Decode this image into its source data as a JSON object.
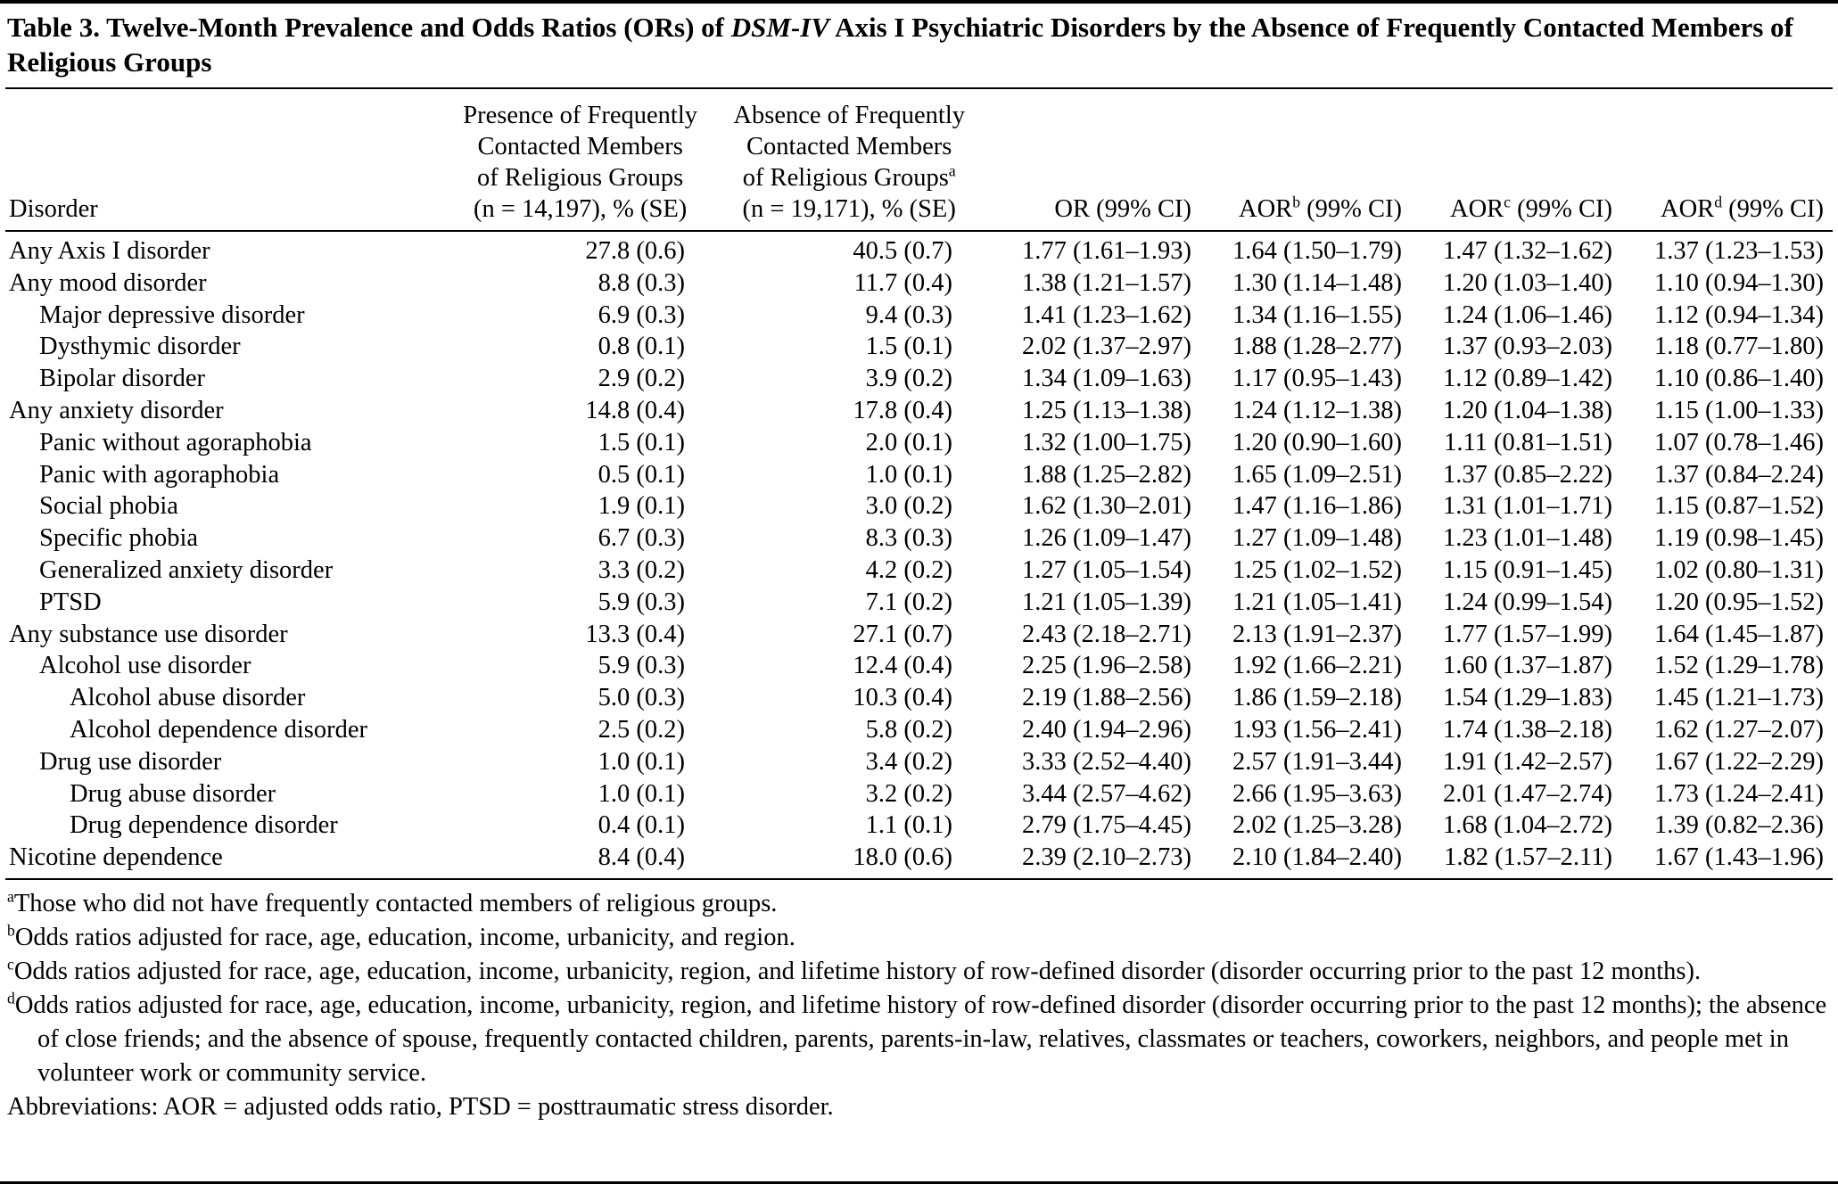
{
  "title": {
    "part1": "Table 3. Twelve-Month Prevalence and Odds Ratios (ORs) of ",
    "italic": "DSM-IV",
    "part2": " Axis I Psychiatric Disorders by the Absence of Frequently Contacted Members of Religious Groups"
  },
  "header": {
    "disorder": "Disorder",
    "presence_lines": [
      "Presence of Frequently",
      "Contacted Members",
      "of Religious Groups",
      "(n = 14,197), % (SE)"
    ],
    "absence_lines": [
      "Absence of Frequently",
      "Contacted Members",
      "of Religious Groups",
      "(n = 19,171), % (SE)"
    ],
    "absence_sup": "a",
    "or": "OR (99% CI)",
    "aor_label": "AOR",
    "aor_sup_b": "b",
    "aor_sup_c": "c",
    "aor_sup_d": "d",
    "ci_suffix": " (99% CI)"
  },
  "table": {
    "rows": [
      {
        "indent": 0,
        "disorder": "Any Axis I disorder",
        "presence": "27.8 (0.6)",
        "absence": "40.5 (0.7)",
        "or": "1.77 (1.61–1.93)",
        "aor_b": "1.64 (1.50–1.79)",
        "aor_c": "1.47 (1.32–1.62)",
        "aor_d": "1.37 (1.23–1.53)"
      },
      {
        "indent": 0,
        "disorder": "Any mood disorder",
        "presence": "8.8 (0.3)",
        "absence": "11.7 (0.4)",
        "or": "1.38 (1.21–1.57)",
        "aor_b": "1.30 (1.14–1.48)",
        "aor_c": "1.20 (1.03–1.40)",
        "aor_d": "1.10 (0.94–1.30)"
      },
      {
        "indent": 1,
        "disorder": "Major depressive disorder",
        "presence": "6.9 (0.3)",
        "absence": "9.4 (0.3)",
        "or": "1.41 (1.23–1.62)",
        "aor_b": "1.34 (1.16–1.55)",
        "aor_c": "1.24 (1.06–1.46)",
        "aor_d": "1.12 (0.94–1.34)"
      },
      {
        "indent": 1,
        "disorder": "Dysthymic disorder",
        "presence": "0.8 (0.1)",
        "absence": "1.5 (0.1)",
        "or": "2.02 (1.37–2.97)",
        "aor_b": "1.88 (1.28–2.77)",
        "aor_c": "1.37 (0.93–2.03)",
        "aor_d": "1.18 (0.77–1.80)"
      },
      {
        "indent": 1,
        "disorder": "Bipolar disorder",
        "presence": "2.9 (0.2)",
        "absence": "3.9 (0.2)",
        "or": "1.34 (1.09–1.63)",
        "aor_b": "1.17 (0.95–1.43)",
        "aor_c": "1.12 (0.89–1.42)",
        "aor_d": "1.10 (0.86–1.40)"
      },
      {
        "indent": 0,
        "disorder": "Any anxiety disorder",
        "presence": "14.8 (0.4)",
        "absence": "17.8 (0.4)",
        "or": "1.25 (1.13–1.38)",
        "aor_b": "1.24 (1.12–1.38)",
        "aor_c": "1.20 (1.04–1.38)",
        "aor_d": "1.15 (1.00–1.33)"
      },
      {
        "indent": 1,
        "disorder": "Panic without agoraphobia",
        "presence": "1.5 (0.1)",
        "absence": "2.0 (0.1)",
        "or": "1.32 (1.00–1.75)",
        "aor_b": "1.20 (0.90–1.60)",
        "aor_c": "1.11 (0.81–1.51)",
        "aor_d": "1.07 (0.78–1.46)"
      },
      {
        "indent": 1,
        "disorder": "Panic with agoraphobia",
        "presence": "0.5 (0.1)",
        "absence": "1.0 (0.1)",
        "or": "1.88 (1.25–2.82)",
        "aor_b": "1.65 (1.09–2.51)",
        "aor_c": "1.37 (0.85–2.22)",
        "aor_d": "1.37 (0.84–2.24)"
      },
      {
        "indent": 1,
        "disorder": "Social phobia",
        "presence": "1.9 (0.1)",
        "absence": "3.0 (0.2)",
        "or": "1.62 (1.30–2.01)",
        "aor_b": "1.47 (1.16–1.86)",
        "aor_c": "1.31 (1.01–1.71)",
        "aor_d": "1.15 (0.87–1.52)"
      },
      {
        "indent": 1,
        "disorder": "Specific phobia",
        "presence": "6.7 (0.3)",
        "absence": "8.3 (0.3)",
        "or": "1.26 (1.09–1.47)",
        "aor_b": "1.27 (1.09–1.48)",
        "aor_c": "1.23 (1.01–1.48)",
        "aor_d": "1.19 (0.98–1.45)"
      },
      {
        "indent": 1,
        "disorder": "Generalized anxiety disorder",
        "presence": "3.3 (0.2)",
        "absence": "4.2 (0.2)",
        "or": "1.27 (1.05–1.54)",
        "aor_b": "1.25 (1.02–1.52)",
        "aor_c": "1.15 (0.91–1.45)",
        "aor_d": "1.02 (0.80–1.31)"
      },
      {
        "indent": 1,
        "disorder": "PTSD",
        "presence": "5.9 (0.3)",
        "absence": "7.1 (0.2)",
        "or": "1.21 (1.05–1.39)",
        "aor_b": "1.21 (1.05–1.41)",
        "aor_c": "1.24 (0.99–1.54)",
        "aor_d": "1.20 (0.95–1.52)"
      },
      {
        "indent": 0,
        "disorder": "Any substance use disorder",
        "presence": "13.3 (0.4)",
        "absence": "27.1 (0.7)",
        "or": "2.43 (2.18–2.71)",
        "aor_b": "2.13 (1.91–2.37)",
        "aor_c": "1.77 (1.57–1.99)",
        "aor_d": "1.64 (1.45–1.87)"
      },
      {
        "indent": 1,
        "disorder": "Alcohol use disorder",
        "presence": "5.9 (0.3)",
        "absence": "12.4 (0.4)",
        "or": "2.25 (1.96–2.58)",
        "aor_b": "1.92 (1.66–2.21)",
        "aor_c": "1.60 (1.37–1.87)",
        "aor_d": "1.52 (1.29–1.78)"
      },
      {
        "indent": 2,
        "disorder": "Alcohol abuse disorder",
        "presence": "5.0 (0.3)",
        "absence": "10.3 (0.4)",
        "or": "2.19 (1.88–2.56)",
        "aor_b": "1.86 (1.59–2.18)",
        "aor_c": "1.54 (1.29–1.83)",
        "aor_d": "1.45 (1.21–1.73)"
      },
      {
        "indent": 2,
        "disorder": "Alcohol dependence disorder",
        "presence": "2.5 (0.2)",
        "absence": "5.8 (0.2)",
        "or": "2.40 (1.94–2.96)",
        "aor_b": "1.93 (1.56–2.41)",
        "aor_c": "1.74 (1.38–2.18)",
        "aor_d": "1.62 (1.27–2.07)"
      },
      {
        "indent": 1,
        "disorder": "Drug use disorder",
        "presence": "1.0 (0.1)",
        "absence": "3.4 (0.2)",
        "or": "3.33 (2.52–4.40)",
        "aor_b": "2.57 (1.91–3.44)",
        "aor_c": "1.91 (1.42–2.57)",
        "aor_d": "1.67 (1.22–2.29)"
      },
      {
        "indent": 2,
        "disorder": "Drug abuse disorder",
        "presence": "1.0 (0.1)",
        "absence": "3.2 (0.2)",
        "or": "3.44 (2.57–4.62)",
        "aor_b": "2.66 (1.95–3.63)",
        "aor_c": "2.01 (1.47–2.74)",
        "aor_d": "1.73 (1.24–2.41)"
      },
      {
        "indent": 2,
        "disorder": "Drug dependence disorder",
        "presence": "0.4 (0.1)",
        "absence": "1.1 (0.1)",
        "or": "2.79 (1.75–4.45)",
        "aor_b": "2.02 (1.25–3.28)",
        "aor_c": "1.68 (1.04–2.72)",
        "aor_d": "1.39 (0.82–2.36)"
      },
      {
        "indent": 0,
        "disorder": "Nicotine dependence",
        "presence": "8.4 (0.4)",
        "absence": "18.0 (0.6)",
        "or": "2.39 (2.10–2.73)",
        "aor_b": "2.10 (1.84–2.40)",
        "aor_c": "1.82 (1.57–2.11)",
        "aor_d": "1.67 (1.43–1.96)"
      }
    ]
  },
  "footnotes": [
    {
      "sup": "a",
      "text": "Those who did not have frequently contacted members of religious groups."
    },
    {
      "sup": "b",
      "text": "Odds ratios adjusted for race, age, education, income, urbanicity, and region."
    },
    {
      "sup": "c",
      "text": "Odds ratios adjusted for race, age, education, income, urbanicity, region, and lifetime history of row-defined disorder (disorder occurring prior to the past 12 months)."
    },
    {
      "sup": "d",
      "text": "Odds ratios adjusted for race, age, education, income, urbanicity, region, and lifetime history of row-defined disorder (disorder occurring prior to the past 12 months); the absence of close friends; and the absence of spouse, frequently contacted children, parents, parents-in-law, relatives, classmates or teachers, coworkers, neighbors, and people met in volunteer work or community service."
    },
    {
      "sup": "",
      "text": "Abbreviations: AOR = adjusted odds ratio, PTSD = posttraumatic stress disorder."
    }
  ]
}
